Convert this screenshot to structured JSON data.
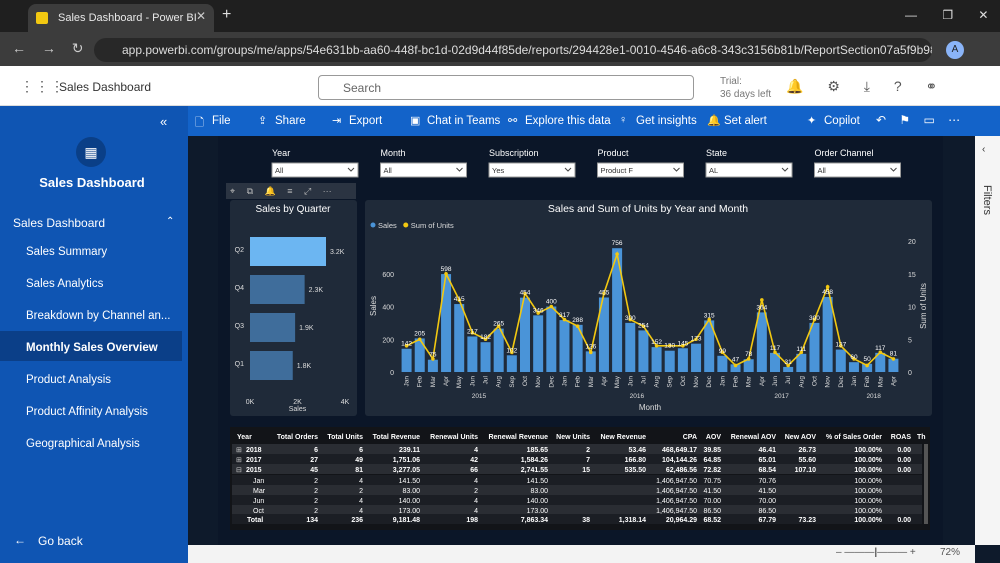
{
  "browser": {
    "tab_title": "Sales Dashboard - Power BI",
    "url": "app.powerbi.com/groups/me/apps/54e631bb-aa60-448f-bc1d-02d9d44f85de/reports/294428e1-0010-4546-a6c8-343c3156b81b/ReportSection07a5f9b98bb0e..."
  },
  "header": {
    "app_name": "Sales Dashboard",
    "search": "Search",
    "trial_label": "Trial:",
    "trial_days": "36 days left"
  },
  "sidebar": {
    "title": "Sales Dashboard",
    "section": "Sales Dashboard",
    "items": [
      "Sales Summary",
      "Sales Analytics",
      "Breakdown by Channel an...",
      "Monthly Sales Overview",
      "Product Analysis",
      "Product Affinity Analysis",
      "Geographical Analysis"
    ],
    "active": "Monthly Sales Overview",
    "back": "Go back"
  },
  "toolbar": [
    "File",
    "Share",
    "Export",
    "Chat in Teams",
    "Explore this data",
    "Get insights",
    "Set alert",
    "Copilot"
  ],
  "filters_pane": "Filters",
  "slicers": [
    {
      "label": "Year",
      "value": "All"
    },
    {
      "label": "Month",
      "value": "All"
    },
    {
      "label": "Subscription",
      "value": "Yes"
    },
    {
      "label": "Product",
      "value": "Product F"
    },
    {
      "label": "State",
      "value": "AL"
    },
    {
      "label": "Order Channel",
      "value": "All"
    }
  ],
  "chart_data": [
    {
      "type": "hbar",
      "title": "Sales by Quarter",
      "categories": [
        "Q2",
        "Q4",
        "Q3",
        "Q1"
      ],
      "values": [
        3200,
        2300,
        1900,
        1800
      ],
      "value_labels": [
        "3.2K",
        "2.3K",
        "1.9K",
        "1.8K"
      ],
      "colors": [
        "#6cb6f2",
        "#3f6d9b",
        "#3f6d9b",
        "#3f6d9b"
      ],
      "xlim": [
        0,
        4000
      ],
      "xticks": [
        {
          "value": 0,
          "label": "0K"
        },
        {
          "value": 2000,
          "label": "2K"
        },
        {
          "value": 4000,
          "label": "4K"
        }
      ],
      "xlabel": "Sales"
    },
    {
      "type": "combo",
      "title": "Sales and Sum of Units by Year and Month",
      "categories": [
        "Jan",
        "Feb",
        "Mar",
        "Apr",
        "May",
        "Jun",
        "Jul",
        "Aug",
        "Sep",
        "Oct",
        "Nov",
        "Dec",
        "Jan",
        "Feb",
        "Mar",
        "Apr",
        "May",
        "Jun",
        "Jul",
        "Aug",
        "Sep",
        "Oct",
        "Nov",
        "Dec",
        "Jan",
        "Feb",
        "Mar",
        "Apr",
        "Jun",
        "Jul",
        "Aug",
        "Oct",
        "Nov",
        "Dec",
        "Jan",
        "Feb",
        "Mar",
        "Apr"
      ],
      "category_years": [
        "2015",
        "2015",
        "2015",
        "2015",
        "2015",
        "2015",
        "2015",
        "2015",
        "2015",
        "2015",
        "2015",
        "2015",
        "2016",
        "2016",
        "2016",
        "2016",
        "2016",
        "2016",
        "2016",
        "2016",
        "2016",
        "2016",
        "2016",
        "2016",
        "2017",
        "2017",
        "2017",
        "2017",
        "2017",
        "2017",
        "2017",
        "2017",
        "2017",
        "2017",
        "2018",
        "2018",
        "2018",
        "2018"
      ],
      "series": [
        {
          "name": "Sales",
          "color": "#4a94d8",
          "values": [
            142,
            205,
            75,
            598,
            415,
            217,
            182,
            265,
            102,
            454,
            346,
            400,
            317,
            288,
            126,
            455,
            756,
            300,
            254,
            152,
            130,
            145,
            173,
            315,
            99,
            47,
            78,
            364,
            117,
            31,
            111,
            300,
            458,
            137,
            60,
            50,
            117,
            81
          ]
        },
        {
          "name": "Sum of Units",
          "color": "#f2c811",
          "axis": "y2",
          "values": [
            4,
            5,
            2,
            15,
            11,
            6,
            5,
            7,
            3,
            12,
            9,
            10,
            8,
            7,
            3,
            12,
            18,
            8,
            7,
            4,
            4,
            4,
            5,
            8,
            3,
            1,
            2,
            11,
            3,
            1,
            3,
            8,
            13,
            4,
            2,
            1,
            3,
            2
          ]
        }
      ],
      "ylim": [
        0,
        800
      ],
      "yticks": [
        0,
        200,
        400,
        600
      ],
      "y2lim": [
        0,
        20
      ],
      "y2ticks": [
        0,
        5,
        10,
        15,
        20
      ],
      "ylabel": "Sales",
      "y2label": "Sum of Units",
      "xlabel": "Month",
      "legend": "top-left"
    }
  ],
  "table": {
    "columns": [
      "Year",
      "Total Orders",
      "Total Units",
      "Total Revenue",
      "Renewal Units",
      "Renewal Revenue",
      "New Units",
      "New Revenue",
      "CPA",
      "AOV",
      "Renewal AOV",
      "New AOV",
      "% of Sales Order",
      "ROAS",
      "Th"
    ],
    "rows": [
      [
        "2018",
        "6",
        "6",
        "239.11",
        "4",
        "185.65",
        "2",
        "53.46",
        "468,649.17",
        "39.85",
        "46.41",
        "26.73",
        "100.00%",
        "0.00"
      ],
      [
        "2017",
        "27",
        "49",
        "1,751.06",
        "42",
        "1,584.26",
        "7",
        "166.80",
        "104,144.26",
        "64.85",
        "65.01",
        "55.60",
        "100.00%",
        "0.00"
      ],
      [
        "2015",
        "45",
        "81",
        "3,277.05",
        "66",
        "2,741.55",
        "15",
        "535.50",
        "62,486.56",
        "72.82",
        "68.54",
        "107.10",
        "100.00%",
        "0.00"
      ],
      [
        "Jan",
        "2",
        "4",
        "141.50",
        "4",
        "141.50",
        null,
        null,
        "1,406,947.50",
        "70.75",
        "70.76",
        null,
        "100.00%",
        null
      ],
      [
        "Mar",
        "2",
        "2",
        "83.00",
        "2",
        "83.00",
        null,
        null,
        "1,406,947.50",
        "41.50",
        "41.50",
        null,
        "100.00%",
        null
      ],
      [
        "Jun",
        "2",
        "4",
        "140.00",
        "4",
        "140.00",
        null,
        null,
        "1,406,947.50",
        "70.00",
        "70.00",
        null,
        "100.00%",
        null
      ],
      [
        "Oct",
        "2",
        "4",
        "173.00",
        "4",
        "173.00",
        null,
        null,
        "1,406,947.50",
        "86.50",
        "86.50",
        null,
        "100.00%",
        null
      ],
      [
        "Total",
        "134",
        "236",
        "9,181.48",
        "198",
        "7,863.34",
        "38",
        "1,318.14",
        "20,964.29",
        "68.52",
        "67.79",
        "73.23",
        "100.00%",
        "0.00"
      ]
    ]
  },
  "status": {
    "zoom": "72%"
  }
}
